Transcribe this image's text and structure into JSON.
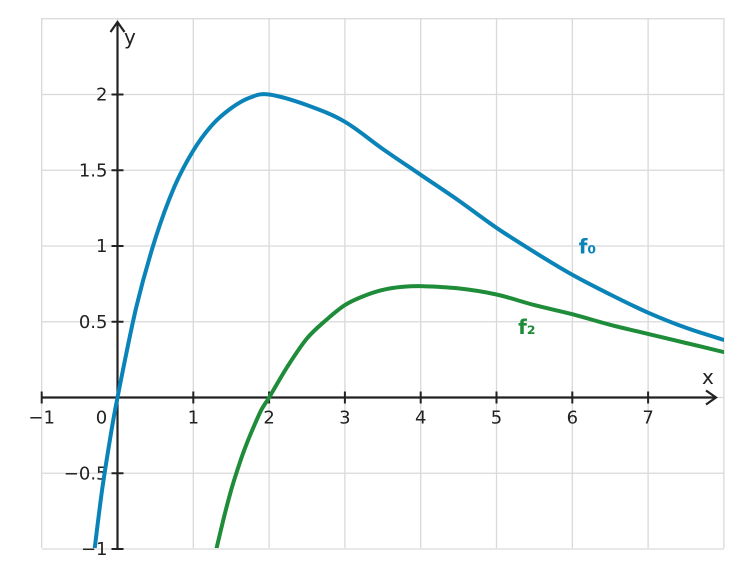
{
  "chart_data": {
    "type": "line",
    "xlabel": "x",
    "ylabel": "y",
    "xlim": [
      -1,
      8
    ],
    "ylim": [
      -1,
      2.5
    ],
    "grid": true,
    "x_ticks": [
      {
        "value": -1,
        "label": "−1"
      },
      {
        "value": 0,
        "label": "0"
      },
      {
        "value": 1,
        "label": "1"
      },
      {
        "value": 2,
        "label": "2"
      },
      {
        "value": 3,
        "label": "3"
      },
      {
        "value": 4,
        "label": "4"
      },
      {
        "value": 5,
        "label": "5"
      },
      {
        "value": 6,
        "label": "6"
      },
      {
        "value": 7,
        "label": "7"
      }
    ],
    "y_ticks": [
      {
        "value": -1,
        "label": "−1"
      },
      {
        "value": -0.5,
        "label": "−0.5"
      },
      {
        "value": 0.5,
        "label": "0.5"
      },
      {
        "value": 1,
        "label": "1"
      },
      {
        "value": 1.5,
        "label": "1.5"
      },
      {
        "value": 2,
        "label": "2"
      }
    ],
    "series": [
      {
        "name": "f₀",
        "color": "#0a84b8",
        "label_at": {
          "x": 6.2,
          "y": 0.95
        },
        "x": [
          -0.3,
          -0.2,
          -0.1,
          0,
          0.25,
          0.5,
          0.75,
          1,
          1.25,
          1.5,
          1.75,
          2,
          2.5,
          3,
          3.5,
          4,
          4.5,
          5,
          5.5,
          6,
          6.5,
          7,
          7.5,
          8
        ],
        "y": [
          -0.99,
          -0.6,
          -0.28,
          0,
          0.6,
          1.05,
          1.39,
          1.63,
          1.8,
          1.91,
          1.98,
          2.0,
          1.93,
          1.82,
          1.64,
          1.47,
          1.3,
          1.12,
          0.96,
          0.81,
          0.68,
          0.56,
          0.46,
          0.38
        ]
      },
      {
        "name": "f₂",
        "color": "#1f8c3a",
        "label_at": {
          "x": 5.4,
          "y": 0.42
        },
        "x": [
          1.3,
          1.4,
          1.5,
          1.6,
          1.7,
          1.8,
          1.9,
          2,
          2.25,
          2.5,
          2.75,
          3,
          3.25,
          3.5,
          3.75,
          4,
          4.5,
          5,
          5.5,
          6,
          6.5,
          7,
          7.5,
          8
        ],
        "y": [
          -1.01,
          -0.8,
          -0.61,
          -0.45,
          -0.31,
          -0.19,
          -0.08,
          0,
          0.21,
          0.39,
          0.51,
          0.61,
          0.67,
          0.71,
          0.73,
          0.735,
          0.72,
          0.68,
          0.61,
          0.55,
          0.48,
          0.42,
          0.36,
          0.3
        ]
      }
    ]
  }
}
